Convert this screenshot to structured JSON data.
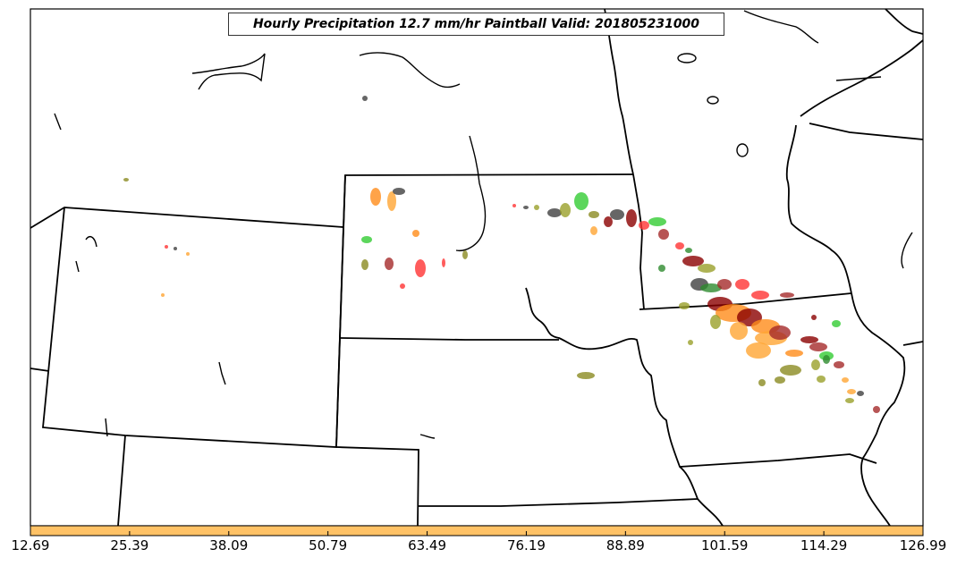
{
  "title": "Hourly Precipitation 12.7 mm/hr Paintball Valid: 201805231000",
  "colorbar": {
    "color": "#ffc266",
    "tick_labels": [
      "12.69",
      "25.39",
      "38.09",
      "50.79",
      "63.49",
      "76.19",
      "88.89",
      "101.59",
      "114.29",
      "126.99"
    ]
  },
  "paint_colors": [
    "#ff3333",
    "#ff8c1a",
    "#ffa533",
    "#33cc33",
    "#2e8b2e",
    "#8b0000",
    "#a52a2a",
    "#8b8b22",
    "#9aa02a",
    "#404040",
    "#ff6666"
  ]
}
